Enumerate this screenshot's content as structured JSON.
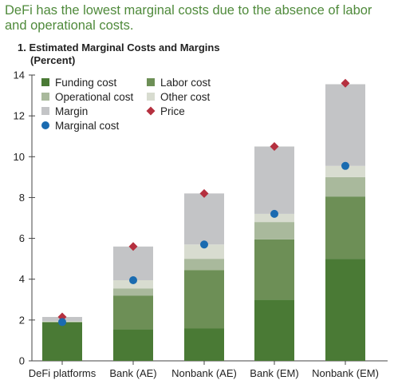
{
  "header": {
    "headline": "DeFi has the lowest marginal costs due to the absence of labor and operational costs."
  },
  "chart_data": {
    "type": "bar",
    "stacked": true,
    "title": "1. Estimated Marginal Costs and Margins",
    "subtitle": "(Percent)",
    "xlabel": "",
    "ylabel": "",
    "ylim": [
      0,
      14
    ],
    "yticks": [
      0,
      2,
      4,
      6,
      8,
      10,
      12,
      14
    ],
    "grid": false,
    "legend_position": "top-left",
    "categories": [
      "DeFi platforms",
      "Bank (AE)",
      "Nonbank (AE)",
      "Bank (EM)",
      "Nonbank (EM)"
    ],
    "series": [
      {
        "name": "Funding cost",
        "color": "#4a7a35",
        "values": [
          1.9,
          1.55,
          1.6,
          3.0,
          5.0
        ]
      },
      {
        "name": "Labor cost",
        "color": "#6d8f56",
        "values": [
          0.0,
          1.65,
          2.85,
          2.95,
          3.05
        ]
      },
      {
        "name": "Operational cost",
        "color": "#a9b99c",
        "values": [
          0.0,
          0.35,
          0.55,
          0.85,
          0.95
        ]
      },
      {
        "name": "Other cost",
        "color": "#d8dcd0",
        "values": [
          0.05,
          0.4,
          0.7,
          0.4,
          0.55
        ]
      },
      {
        "name": "Margin",
        "color": "#c3c4c6",
        "values": [
          0.2,
          1.65,
          2.5,
          3.3,
          4.0
        ]
      }
    ],
    "markers": [
      {
        "name": "Price",
        "color": "#b5303f",
        "shape": "diamond",
        "values": [
          2.15,
          5.6,
          8.2,
          10.5,
          13.6
        ]
      },
      {
        "name": "Marginal cost",
        "color": "#1a6bb0",
        "shape": "circle",
        "values": [
          1.9,
          3.95,
          5.7,
          7.2,
          9.55
        ]
      }
    ]
  }
}
